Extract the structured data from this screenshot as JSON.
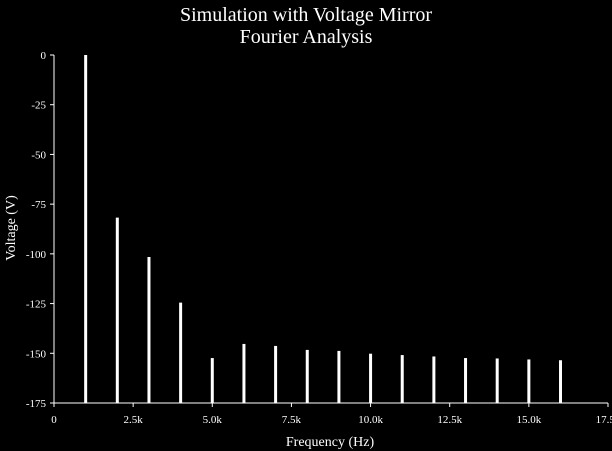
{
  "chart_data": {
    "type": "bar",
    "title": "Simulation with Voltage Mirror",
    "subtitle": "Fourier Analysis",
    "xlabel": "Frequency (Hz)",
    "ylabel": "Voltage (V)",
    "xlim": [
      0,
      17500
    ],
    "ylim": [
      -175,
      0
    ],
    "grid": false,
    "x_ticks": [
      {
        "value": 0,
        "label": "0"
      },
      {
        "value": 2500,
        "label": "2.5k"
      },
      {
        "value": 5000,
        "label": "5.0k"
      },
      {
        "value": 7500,
        "label": "7.5k"
      },
      {
        "value": 10000,
        "label": "10.0k"
      },
      {
        "value": 12500,
        "label": "12.5k"
      },
      {
        "value": 15000,
        "label": "15.0k"
      },
      {
        "value": 17500,
        "label": "17.5k"
      }
    ],
    "y_ticks": [
      {
        "value": 0,
        "label": "0"
      },
      {
        "value": -25,
        "label": "-25"
      },
      {
        "value": -50,
        "label": "-50"
      },
      {
        "value": -75,
        "label": "-75"
      },
      {
        "value": -100,
        "label": "-100"
      },
      {
        "value": -125,
        "label": "-125"
      },
      {
        "value": -150,
        "label": "-150"
      },
      {
        "value": -175,
        "label": "-175"
      }
    ],
    "x": [
      1000,
      2000,
      3000,
      4000,
      5000,
      6000,
      7000,
      8000,
      9000,
      10000,
      11000,
      12000,
      13000,
      14000,
      15000,
      16000
    ],
    "values": [
      0,
      -81.8,
      -101.6,
      -124.5,
      -152.4,
      -145.3,
      -146.3,
      -148.3,
      -148.8,
      -150.2,
      -150.9,
      -151.6,
      -152.4,
      -152.6,
      -153.1,
      -153.5
    ],
    "colors": {
      "background": "#000000",
      "foreground": "#ffffff"
    }
  }
}
